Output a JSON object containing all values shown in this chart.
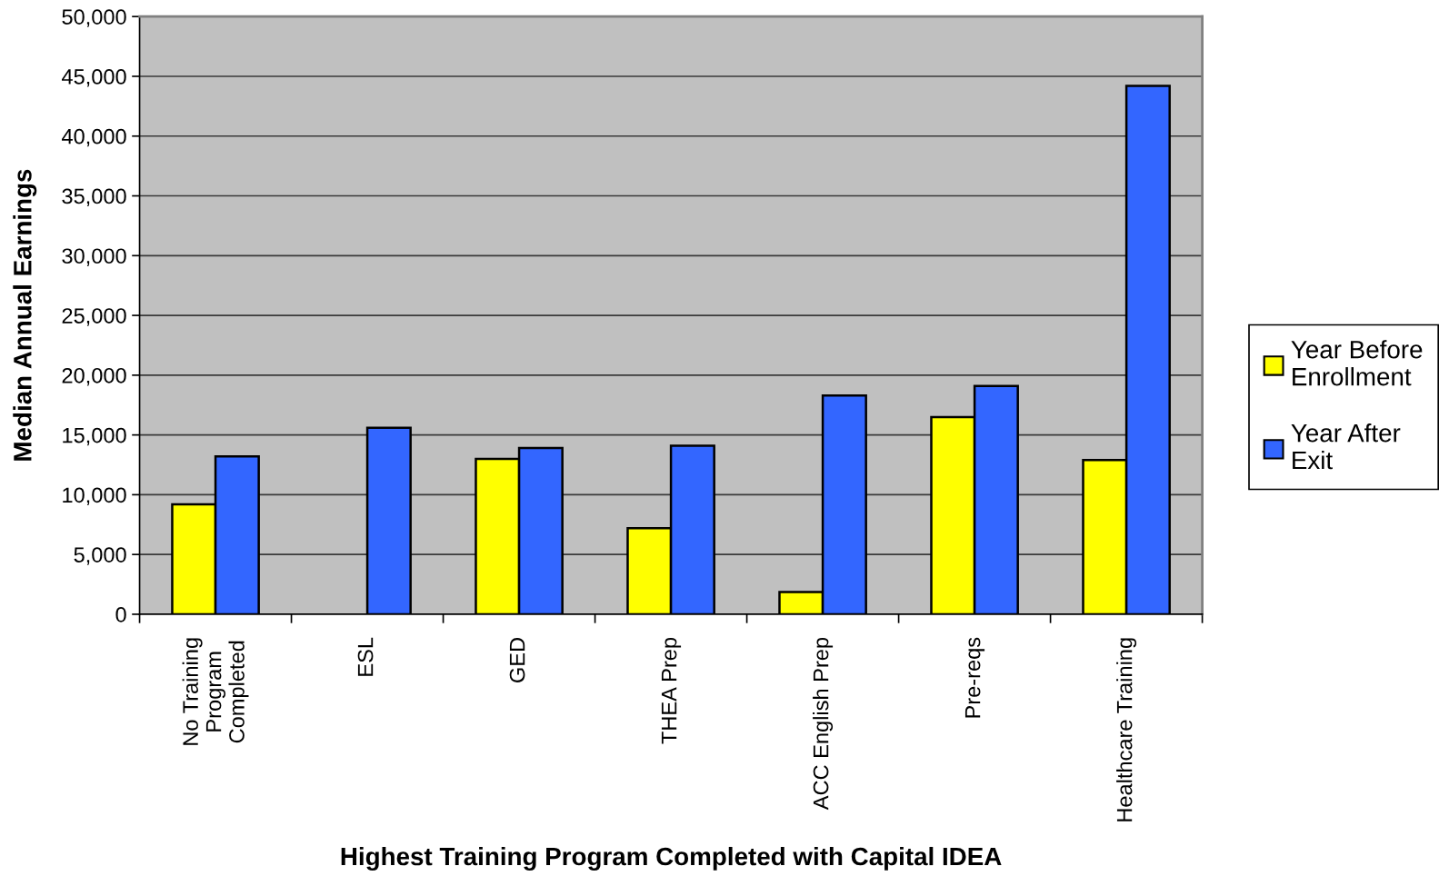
{
  "chart_data": {
    "type": "bar",
    "xlabel": "Highest Training Program Completed with Capital IDEA",
    "ylabel": "Median Annual Earnings",
    "categories": [
      "No Training\nProgram\nCompleted",
      "ESL",
      "GED",
      "THEA Prep",
      "ACC English Prep",
      "Pre-reqs",
      "Healthcare Training"
    ],
    "series": [
      {
        "name": "Year Before\nEnrollment",
        "color": "#ffff00",
        "values": [
          9200,
          null,
          13000,
          7200,
          1850,
          16500,
          12900
        ]
      },
      {
        "name": "Year After\nExit",
        "color": "#3366ff",
        "values": [
          13200,
          15600,
          13900,
          14100,
          18300,
          19100,
          44200
        ]
      }
    ],
    "ylim": [
      0,
      50000
    ],
    "yticks": [
      {
        "value": 0,
        "label": "0"
      },
      {
        "value": 5000,
        "label": "5,000"
      },
      {
        "value": 10000,
        "label": "10,000"
      },
      {
        "value": 15000,
        "label": "15,000"
      },
      {
        "value": 20000,
        "label": "20,000"
      },
      {
        "value": 25000,
        "label": "25,000"
      },
      {
        "value": 30000,
        "label": "30,000"
      },
      {
        "value": 35000,
        "label": "35,000"
      },
      {
        "value": 40000,
        "label": "40,000"
      },
      {
        "value": 45000,
        "label": "45,000"
      },
      {
        "value": 50000,
        "label": "50,000"
      }
    ],
    "grid": "y",
    "legend": "right"
  }
}
